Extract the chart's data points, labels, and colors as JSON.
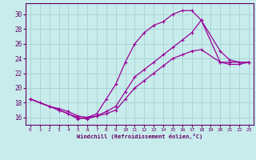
{
  "xlabel": "Windchill (Refroidissement éolien,°C)",
  "background_color": "#c8ecec",
  "grid_color": "#aad4d4",
  "line_color": "#990099",
  "xlim": [
    -0.5,
    23.5
  ],
  "ylim": [
    15.0,
    31.5
  ],
  "xticks": [
    0,
    1,
    2,
    3,
    4,
    5,
    6,
    7,
    8,
    9,
    10,
    11,
    12,
    13,
    14,
    15,
    16,
    17,
    18,
    19,
    20,
    21,
    22,
    23
  ],
  "yticks": [
    16,
    18,
    20,
    22,
    24,
    26,
    28,
    30
  ],
  "line1_x": [
    0,
    1,
    2,
    3,
    4,
    5,
    6,
    7,
    8,
    9,
    10,
    11,
    12,
    13,
    14,
    15,
    16,
    17,
    18,
    20,
    21,
    22,
    23
  ],
  "line1_y": [
    18.5,
    18.0,
    17.5,
    17.0,
    16.5,
    15.8,
    16.0,
    16.5,
    18.5,
    20.5,
    23.5,
    26.0,
    27.5,
    28.5,
    29.0,
    30.0,
    30.5,
    30.5,
    29.2,
    23.5,
    23.5,
    23.5,
    23.5
  ],
  "line2_x": [
    0,
    2,
    3,
    4,
    5,
    6,
    7,
    8,
    9,
    10,
    11,
    12,
    13,
    14,
    15,
    16,
    17,
    18,
    20,
    21,
    22,
    23
  ],
  "line2_y": [
    18.5,
    17.5,
    17.0,
    16.5,
    16.0,
    15.8,
    16.2,
    16.8,
    17.5,
    19.5,
    21.5,
    22.5,
    23.5,
    24.5,
    25.5,
    26.5,
    27.5,
    29.2,
    25.0,
    23.8,
    23.5,
    23.5
  ],
  "line3_x": [
    0,
    2,
    3,
    4,
    5,
    6,
    7,
    8,
    9,
    10,
    11,
    12,
    13,
    14,
    15,
    16,
    17,
    18,
    20,
    21,
    22,
    23
  ],
  "line3_y": [
    18.5,
    17.5,
    17.2,
    16.8,
    16.2,
    16.0,
    16.2,
    16.5,
    17.0,
    18.5,
    20.0,
    21.0,
    22.0,
    23.0,
    24.0,
    24.5,
    25.0,
    25.2,
    23.5,
    23.2,
    23.2,
    23.5
  ]
}
